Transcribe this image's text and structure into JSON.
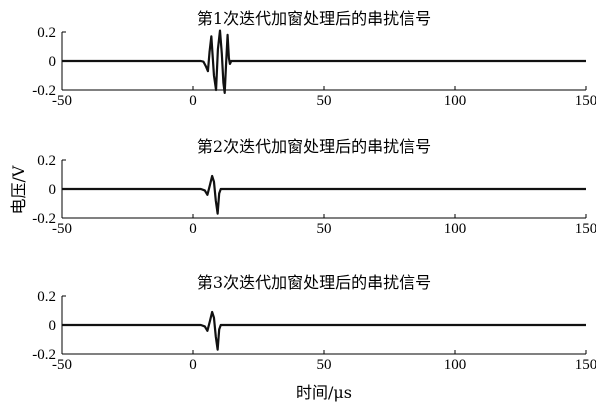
{
  "chart_data": [
    {
      "type": "line",
      "title": "第1次迭代加窗处理后的串扰信号",
      "xlim": [
        -50,
        150
      ],
      "ylim": [
        -0.2,
        0.2
      ],
      "xticks": [
        "-50",
        "0",
        "50",
        "100",
        "150"
      ],
      "yticks": [
        "0.2",
        "0",
        "-0.2"
      ],
      "series": [
        {
          "x": [
            -50,
            3,
            4,
            5,
            5.7,
            6.3,
            7,
            8,
            8.8,
            9.5,
            10.3,
            11,
            11.6,
            12.1,
            12.6,
            13.2,
            13.7,
            14.1,
            14.6,
            150
          ],
          "y": [
            0,
            0,
            -0.005,
            -0.04,
            -0.07,
            0.06,
            0.17,
            -0.1,
            -0.2,
            0.08,
            0.21,
            0.05,
            -0.15,
            -0.22,
            -0.03,
            0.18,
            0.02,
            -0.02,
            0,
            0
          ]
        }
      ]
    },
    {
      "type": "line",
      "title": "第2次迭代加窗处理后的串扰信号",
      "xlim": [
        -50,
        150
      ],
      "ylim": [
        -0.2,
        0.2
      ],
      "xticks": [
        "-50",
        "0",
        "50",
        "100",
        "150"
      ],
      "yticks": [
        "0.2",
        "0",
        "-0.2"
      ],
      "series": [
        {
          "x": [
            -50,
            3,
            4.5,
            5.5,
            6.5,
            7.3,
            8,
            8.7,
            9.4,
            10,
            10.6,
            150
          ],
          "y": [
            0,
            0,
            -0.01,
            -0.04,
            0.03,
            0.09,
            0.05,
            -0.08,
            -0.17,
            -0.03,
            0,
            0
          ]
        }
      ]
    },
    {
      "type": "line",
      "title": "第3次迭代加窗处理后的串扰信号",
      "xlim": [
        -50,
        150
      ],
      "ylim": [
        -0.2,
        0.2
      ],
      "xticks": [
        "-50",
        "0",
        "50",
        "100",
        "150"
      ],
      "yticks": [
        "0.2",
        "0",
        "-0.2"
      ],
      "series": [
        {
          "x": [
            -50,
            3,
            4.5,
            5.5,
            6.5,
            7.3,
            8,
            8.7,
            9.4,
            10,
            10.6,
            150
          ],
          "y": [
            0,
            0,
            -0.01,
            -0.04,
            0.03,
            0.09,
            0.05,
            -0.08,
            -0.17,
            -0.03,
            0,
            0
          ]
        }
      ]
    }
  ],
  "ylabel": "电压/V",
  "xlabel": "时间/μs"
}
